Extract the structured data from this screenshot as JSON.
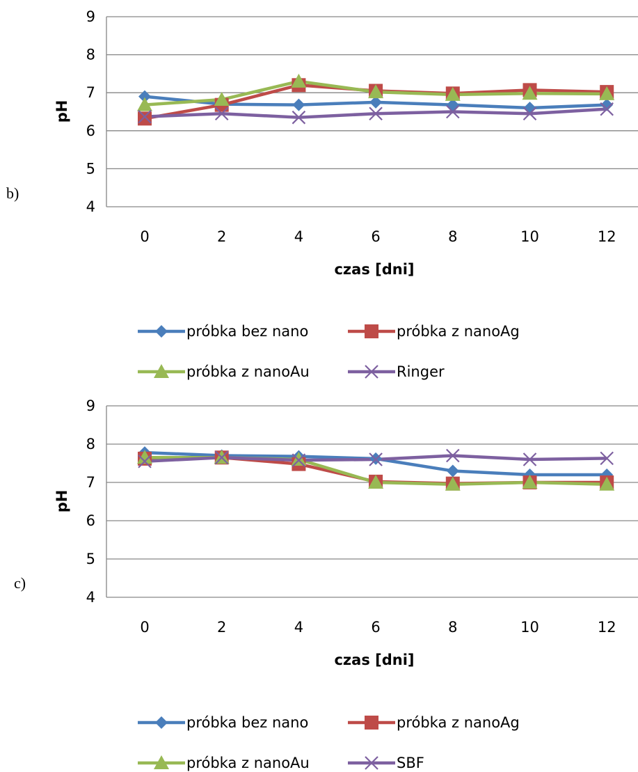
{
  "chart_data": [
    {
      "type": "line",
      "panel_label": "b)",
      "xlabel": "czas [dni]",
      "ylabel": "pH",
      "x": [
        0,
        2,
        4,
        6,
        8,
        10,
        12
      ],
      "xticks": [
        "0",
        "2",
        "4",
        "6",
        "8",
        "10",
        "12"
      ],
      "yticks": [
        "4",
        "5",
        "6",
        "7",
        "8",
        "9"
      ],
      "ylim": [
        4,
        9
      ],
      "grid": "horizontal",
      "legend_position": "bottom",
      "series": [
        {
          "name": "próbka bez nano",
          "color": "#4A7EBB",
          "marker": "diamond",
          "values": [
            6.9,
            6.7,
            6.68,
            6.75,
            6.68,
            6.6,
            6.68
          ]
        },
        {
          "name": "próbka z nanoAg",
          "color": "#BE4B48",
          "marker": "square",
          "values": [
            6.32,
            6.68,
            7.2,
            7.05,
            6.98,
            7.07,
            7.02
          ]
        },
        {
          "name": "próbka z nanoAu",
          "color": "#98B954",
          "marker": "triangle",
          "values": [
            6.68,
            6.82,
            7.3,
            7.02,
            6.95,
            6.98,
            6.97
          ]
        },
        {
          "name": "Ringer",
          "color": "#7D60A0",
          "marker": "x",
          "values": [
            6.37,
            6.45,
            6.35,
            6.45,
            6.5,
            6.45,
            6.57
          ]
        }
      ]
    },
    {
      "type": "line",
      "panel_label": "c)",
      "xlabel": "czas [dni]",
      "ylabel": "pH",
      "x": [
        0,
        2,
        4,
        6,
        8,
        10,
        12
      ],
      "xticks": [
        "0",
        "2",
        "4",
        "6",
        "8",
        "10",
        "12"
      ],
      "yticks": [
        "4",
        "5",
        "6",
        "7",
        "8",
        "9"
      ],
      "ylim": [
        4,
        9
      ],
      "grid": "horizontal",
      "legend_position": "bottom",
      "series": [
        {
          "name": "próbka bez nano",
          "color": "#4A7EBB",
          "marker": "diamond",
          "values": [
            7.78,
            7.7,
            7.68,
            7.62,
            7.3,
            7.2,
            7.2
          ]
        },
        {
          "name": "próbka z nanoAg",
          "color": "#BE4B48",
          "marker": "square",
          "values": [
            7.62,
            7.65,
            7.48,
            7.02,
            6.97,
            7.0,
            7.0
          ]
        },
        {
          "name": "próbka z nanoAu",
          "color": "#98B954",
          "marker": "triangle",
          "values": [
            7.65,
            7.65,
            7.6,
            7.0,
            6.95,
            7.0,
            6.95
          ]
        },
        {
          "name": "SBF",
          "color": "#7D60A0",
          "marker": "x",
          "values": [
            7.55,
            7.65,
            7.58,
            7.6,
            7.7,
            7.6,
            7.63
          ]
        }
      ]
    }
  ]
}
